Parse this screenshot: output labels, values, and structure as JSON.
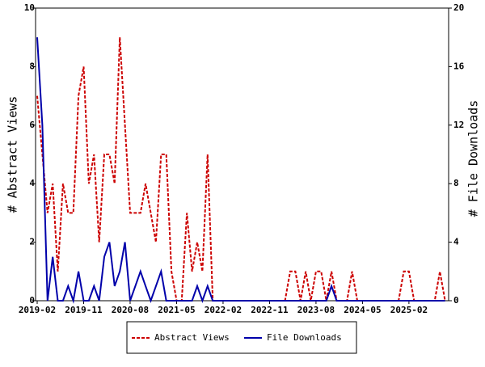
{
  "chart_data": {
    "type": "line",
    "categories": [
      "2019-02",
      null,
      null,
      null,
      null,
      null,
      null,
      null,
      null,
      "2019-11",
      null,
      null,
      null,
      null,
      null,
      null,
      null,
      null,
      "2020-08",
      null,
      null,
      null,
      null,
      null,
      null,
      null,
      null,
      "2021-05",
      null,
      null,
      null,
      null,
      null,
      null,
      null,
      null,
      "2022-02",
      null,
      null,
      null,
      null,
      null,
      null,
      null,
      null,
      "2022-11",
      null,
      null,
      null,
      null,
      null,
      null,
      null,
      null,
      "2023-08",
      null,
      null,
      null,
      null,
      null,
      null,
      null,
      null,
      "2024-05",
      null,
      null,
      null,
      null,
      null,
      null,
      null,
      null,
      "2025-02",
      null,
      null,
      null,
      null,
      null,
      null,
      null
    ],
    "y_label": "# Abstract Views",
    "y2_label": "# File Downloads",
    "ylim": [
      0,
      10
    ],
    "yticks": [
      0,
      2,
      4,
      6,
      8,
      10
    ],
    "y2lim": [
      0,
      20
    ],
    "y2ticks": [
      0,
      4,
      8,
      12,
      16,
      20
    ],
    "series": [
      {
        "name": "Abstract Views",
        "color": "#cc0000",
        "dash": true,
        "values": [
          7,
          5,
          3,
          4,
          1,
          4,
          3,
          3,
          7,
          8,
          4,
          5,
          2,
          5,
          5,
          4,
          9,
          6,
          3,
          3,
          3,
          4,
          3,
          2,
          5,
          5,
          1,
          0,
          0,
          3,
          1,
          2,
          1,
          5,
          0,
          0,
          0,
          0,
          0,
          0,
          0,
          0,
          0,
          0,
          0,
          0,
          0,
          0,
          0,
          1,
          1,
          0,
          1,
          0,
          1,
          1,
          0,
          1,
          0,
          0,
          0,
          1,
          0,
          0,
          0,
          0,
          0,
          0,
          0,
          0,
          0,
          1,
          1,
          0,
          0,
          0,
          0,
          0,
          1,
          0
        ]
      },
      {
        "name": "File Downloads",
        "color": "#0000aa",
        "axis": "y2",
        "dash": false,
        "values": [
          18,
          12,
          0,
          3,
          0,
          0,
          1,
          0,
          2,
          0,
          0,
          1,
          0,
          3,
          4,
          1,
          2,
          4,
          0,
          1,
          2,
          1,
          0,
          1,
          2,
          0,
          0,
          0,
          0,
          0,
          0,
          1,
          0,
          1,
          0,
          0,
          0,
          0,
          0,
          0,
          0,
          0,
          0,
          0,
          0,
          0,
          0,
          0,
          0,
          0,
          0,
          0,
          0,
          0,
          0,
          0,
          0,
          1,
          0,
          0,
          0,
          0,
          0,
          0,
          0,
          0,
          0,
          0,
          0,
          0,
          0,
          0,
          0,
          0,
          0,
          0,
          0,
          0,
          0,
          0
        ]
      }
    ]
  }
}
